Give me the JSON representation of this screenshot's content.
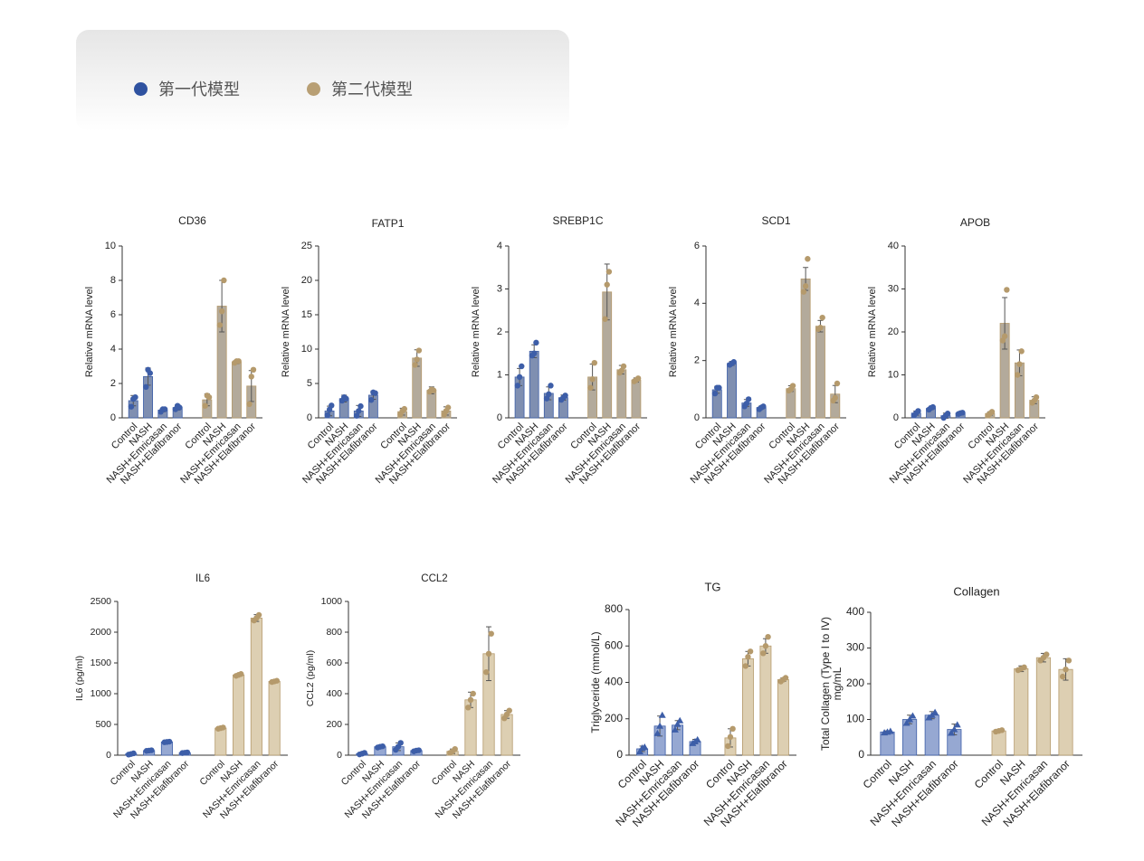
{
  "legend": [
    {
      "label": "第一代模型",
      "color": "#2f52a0"
    },
    {
      "label": "第二代模型",
      "color": "#b89f74"
    }
  ],
  "chart_data": [
    {
      "type": "bar",
      "title": "CD36",
      "ylabel": "Relative mRNA level",
      "ylim": [
        0,
        10
      ],
      "yticks": [
        0,
        2,
        4,
        6,
        8,
        10
      ],
      "categories": [
        "Control",
        "NASH",
        "NASH+Emricasan",
        "NASH+Elafibranor"
      ],
      "series": [
        {
          "color": "#7f8fb1",
          "point_color": "#3d5ea8",
          "values": [
            1.0,
            2.4,
            0.45,
            0.6
          ],
          "errors": [
            0.3,
            0.5,
            0.1,
            0.15
          ],
          "points": [
            [
              0.65,
              1.1,
              1.2
            ],
            [
              1.8,
              2.8,
              2.6
            ],
            [
              0.35,
              0.5,
              0.5
            ],
            [
              0.5,
              0.7,
              0.6
            ]
          ]
        },
        {
          "color": "#b3aa9b",
          "point_color": "#b59a6c",
          "values": [
            1.05,
            6.5,
            3.25,
            1.85
          ],
          "errors": [
            0.35,
            1.5,
            0.1,
            0.9
          ],
          "points": [
            [
              0.7,
              1.3,
              1.2
            ],
            [
              5.4,
              6.2,
              8.0
            ],
            [
              3.2,
              3.3,
              3.3
            ],
            [
              0.8,
              2.4,
              2.8
            ]
          ]
        }
      ]
    },
    {
      "type": "bar",
      "title": "FATP1",
      "ylabel": "Relative mRNA level",
      "ylim": [
        0,
        25
      ],
      "yticks": [
        0,
        5,
        10,
        15,
        20,
        25
      ],
      "categories": [
        "Control",
        "NASH",
        "NASH+Emricasan",
        "NASH+Elafibranor"
      ],
      "series": [
        {
          "color": "#7f8fb1",
          "point_color": "#3d5ea8",
          "values": [
            1.0,
            2.8,
            1.0,
            3.3
          ],
          "errors": [
            0.7,
            0.5,
            0.8,
            0.6
          ],
          "points": [
            [
              0.4,
              1.2,
              1.8
            ],
            [
              2.5,
              3.0,
              2.8
            ],
            [
              0.3,
              1.0,
              1.7
            ],
            [
              2.6,
              3.7,
              3.6
            ]
          ]
        },
        {
          "color": "#b3aa9b",
          "point_color": "#b59a6c",
          "values": [
            0.9,
            8.7,
            4.0,
            1.0
          ],
          "errors": [
            0.5,
            1.2,
            0.5,
            0.6
          ],
          "points": [
            [
              0.5,
              1.0,
              1.3
            ],
            [
              7.7,
              8.5,
              9.8
            ],
            [
              3.8,
              4.1,
              4.0
            ],
            [
              0.5,
              1.0,
              1.5
            ]
          ]
        }
      ]
    },
    {
      "type": "bar",
      "title": "SREBP1C",
      "ylabel": "Relative mRNA level",
      "ylim": [
        0,
        4
      ],
      "yticks": [
        0,
        1,
        2,
        3,
        4
      ],
      "categories": [
        "Control",
        "NASH",
        "NASH+Emricasan",
        "NASH+Elafibranor"
      ],
      "series": [
        {
          "color": "#7f8fb1",
          "point_color": "#3d5ea8",
          "values": [
            0.95,
            1.55,
            0.57,
            0.47
          ],
          "errors": [
            0.2,
            0.15,
            0.15,
            0.06
          ],
          "points": [
            [
              0.75,
              0.95,
              1.2
            ],
            [
              1.45,
              1.5,
              1.75
            ],
            [
              0.45,
              0.55,
              0.75
            ],
            [
              0.42,
              0.47,
              0.52
            ]
          ]
        },
        {
          "color": "#b3aa9b",
          "point_color": "#b59a6c",
          "values": [
            0.95,
            2.93,
            1.12,
            0.88
          ],
          "errors": [
            0.3,
            0.65,
            0.1,
            0.05
          ],
          "points": [
            [
              0.7,
              0.9,
              1.28
            ],
            [
              2.3,
              3.1,
              3.4
            ],
            [
              1.05,
              1.1,
              1.2
            ],
            [
              0.85,
              0.88,
              0.92
            ]
          ]
        }
      ]
    },
    {
      "type": "bar",
      "title": "SCD1",
      "ylabel": "Relative mRNA level",
      "ylim": [
        0,
        6
      ],
      "yticks": [
        0,
        2,
        4,
        6
      ],
      "categories": [
        "Control",
        "NASH",
        "NASH+Emricasan",
        "NASH+Elafibranor"
      ],
      "series": [
        {
          "color": "#7f8fb1",
          "point_color": "#3d5ea8",
          "values": [
            0.98,
            1.9,
            0.52,
            0.36
          ],
          "errors": [
            0.12,
            0.07,
            0.12,
            0.05
          ],
          "points": [
            [
              0.85,
              1.05,
              1.05
            ],
            [
              1.85,
              1.9,
              1.95
            ],
            [
              0.4,
              0.5,
              0.65
            ],
            [
              0.3,
              0.36,
              0.4
            ]
          ]
        },
        {
          "color": "#b3aa9b",
          "point_color": "#b59a6c",
          "values": [
            1.02,
            4.85,
            3.2,
            0.83
          ],
          "errors": [
            0.1,
            0.4,
            0.2,
            0.3
          ],
          "points": [
            [
              0.95,
              1.0,
              1.12
            ],
            [
              4.4,
              4.6,
              5.55
            ],
            [
              3.1,
              3.15,
              3.5
            ],
            [
              0.6,
              0.7,
              1.2
            ]
          ]
        }
      ]
    },
    {
      "type": "bar",
      "title": "APOB",
      "ylabel": "Relative mRNA level",
      "ylim": [
        0,
        40
      ],
      "yticks": [
        0,
        10,
        20,
        30,
        40
      ],
      "categories": [
        "Control",
        "NASH",
        "NASH+Emricasan",
        "NASH+Elafibranor"
      ],
      "series": [
        {
          "color": "#7f8fb1",
          "point_color": "#3d5ea8",
          "values": [
            1.1,
            2.2,
            0.5,
            1.1
          ],
          "errors": [
            0.5,
            0.3,
            0.6,
            0.2
          ],
          "points": [
            [
              0.6,
              1.1,
              1.6
            ],
            [
              1.9,
              2.3,
              2.5
            ],
            [
              0.0,
              0.5,
              1.0
            ],
            [
              0.9,
              1.1,
              1.2
            ]
          ]
        },
        {
          "color": "#b3aa9b",
          "point_color": "#b59a6c",
          "values": [
            1.0,
            22,
            12.8,
            4.1
          ],
          "errors": [
            0.4,
            6,
            3,
            0.8
          ],
          "points": [
            [
              0.6,
              1.0,
              1.4
            ],
            [
              18,
              19,
              29.8
            ],
            [
              10,
              12.5,
              15.5
            ],
            [
              3.5,
              4.0,
              4.8
            ]
          ]
        }
      ]
    },
    {
      "type": "bar",
      "title": "IL6",
      "ylabel": "IL6 (pg/ml)",
      "ylim": [
        0,
        2500
      ],
      "yticks": [
        0,
        500,
        1000,
        1500,
        2000,
        2500
      ],
      "categories": [
        "Control",
        "NASH",
        "NASH+Emricasan",
        "NASH+Elafibranor"
      ],
      "series": [
        {
          "color": "#96a8d2",
          "point_color": "#3d5ea8",
          "values": [
            20,
            75,
            215,
            40
          ],
          "errors": [
            10,
            8,
            8,
            10
          ],
          "points": [
            [
              10,
              20,
              30
            ],
            [
              70,
              75,
              80
            ],
            [
              210,
              215,
              220
            ],
            [
              35,
              40,
              45
            ]
          ]
        },
        {
          "color": "#ddcfb2",
          "point_color": "#b59a6c",
          "values": [
            440,
            1305,
            2230,
            1200
          ],
          "errors": [
            10,
            15,
            55,
            10
          ],
          "points": [
            [
              430,
              440,
              450
            ],
            [
              1290,
              1305,
              1320
            ],
            [
              2190,
              2230,
              2280
            ],
            [
              1190,
              1200,
              1210
            ]
          ]
        }
      ]
    },
    {
      "type": "bar",
      "title": "CCL2",
      "ylabel": "CCL2 (pg/ml)",
      "ylim": [
        0,
        1000
      ],
      "yticks": [
        0,
        200,
        400,
        600,
        800,
        1000
      ],
      "categories": [
        "Control",
        "NASH",
        "NASH+Emricasan",
        "NASH+Elafibranor"
      ],
      "series": [
        {
          "color": "#96a8d2",
          "point_color": "#3d5ea8",
          "values": [
            10,
            55,
            55,
            30
          ],
          "errors": [
            5,
            5,
            25,
            5
          ],
          "points": [
            [
              5,
              10,
              15
            ],
            [
              50,
              55,
              58
            ],
            [
              35,
              55,
              80
            ],
            [
              25,
              30,
              32
            ]
          ]
        },
        {
          "color": "#ddcfb2",
          "point_color": "#b59a6c",
          "values": [
            25,
            360,
            660,
            265
          ],
          "errors": [
            15,
            50,
            175,
            25
          ],
          "points": [
            [
              15,
              25,
              40
            ],
            [
              310,
              360,
              400
            ],
            [
              540,
              660,
              790
            ],
            [
              240,
              265,
              290
            ]
          ]
        }
      ]
    },
    {
      "type": "bar",
      "title": "TG",
      "ylabel": "Triglyceride (mmol/L)",
      "ylim": [
        0,
        800
      ],
      "yticks": [
        0,
        200,
        400,
        600,
        800
      ],
      "categories": [
        "Control",
        "NASH",
        "NASH+Emricasan",
        "NASH+Elafibranor"
      ],
      "series": [
        {
          "color": "#96a8d2",
          "point_color": "#3d5ea8",
          "marker": "triangle",
          "values": [
            35,
            160,
            165,
            75
          ],
          "errors": [
            15,
            55,
            25,
            12
          ],
          "points": [
            [
              20,
              40,
              45
            ],
            [
              120,
              160,
              220
            ],
            [
              140,
              170,
              190
            ],
            [
              65,
              75,
              85
            ]
          ]
        },
        {
          "color": "#ddcfb2",
          "point_color": "#b59a6c",
          "values": [
            95,
            530,
            600,
            415
          ],
          "errors": [
            50,
            40,
            40,
            10
          ],
          "points": [
            [
              50,
              100,
              145
            ],
            [
              490,
              540,
              570
            ],
            [
              560,
              600,
              650
            ],
            [
              405,
              415,
              425
            ]
          ]
        }
      ]
    },
    {
      "type": "bar",
      "title": "Collagen",
      "ylabel": [
        "Total Collagen (Type I to IV)",
        "mg/mL"
      ],
      "ylim": [
        0,
        400
      ],
      "yticks": [
        0,
        100,
        200,
        300,
        400
      ],
      "categories": [
        "Control",
        "NASH",
        "NASH+Emricasan",
        "NASH+Elafibranor"
      ],
      "series": [
        {
          "color": "#96a8d2",
          "point_color": "#3d5ea8",
          "marker": "triangle",
          "values": [
            65,
            100,
            112,
            72
          ],
          "errors": [
            3,
            12,
            10,
            15
          ],
          "points": [
            [
              63,
              65,
              67
            ],
            [
              90,
              100,
              110
            ],
            [
              105,
              112,
              120
            ],
            [
              62,
              72,
              85
            ]
          ]
        },
        {
          "color": "#ddcfb2",
          "point_color": "#b59a6c",
          "values": [
            68,
            242,
            273,
            240
          ],
          "errors": [
            3,
            8,
            12,
            30
          ],
          "points": [
            [
              66,
              68,
              70
            ],
            [
              238,
              242,
              246
            ],
            [
              265,
              273,
              282
            ],
            [
              220,
              240,
              265
            ]
          ]
        }
      ]
    }
  ]
}
